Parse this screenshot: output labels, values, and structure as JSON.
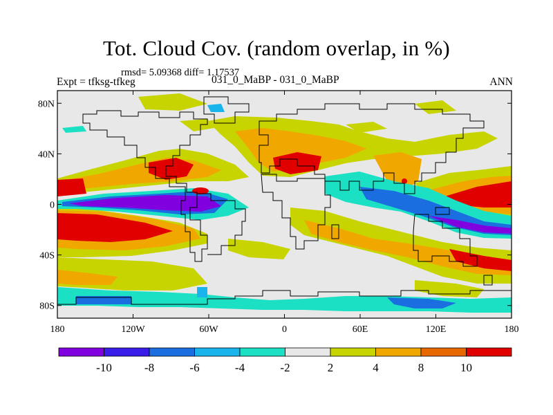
{
  "figure": {
    "title": "Tot. Cloud Cov. (random overlap, in %)",
    "stats_line": "rmsd= 5.09368 diff= 1.17537",
    "left_label": "Expt = tfksg-tfkeg",
    "center_label": "031_0_MaBP - 031_0_MaBP",
    "right_label": "ANN"
  },
  "axes": {
    "x_ticks": [
      "180",
      "120W",
      "60W",
      "0",
      "60E",
      "120E",
      "180"
    ],
    "y_ticks": [
      "80N",
      "40N",
      "0",
      "40S",
      "80S"
    ]
  },
  "colorbar": {
    "colors": [
      "#8000e0",
      "#3a1ce8",
      "#1a6ee0",
      "#1ab4ec",
      "#1ce0c4",
      "#e8e8e8",
      "#c8d400",
      "#f0a800",
      "#e86800",
      "#e00000"
    ],
    "labels": [
      "-10",
      "-8",
      "-6",
      "-4",
      "-2",
      "2",
      "4",
      "8",
      "10"
    ]
  }
}
